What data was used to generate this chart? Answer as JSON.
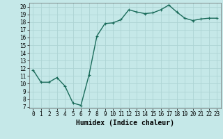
{
  "x": [
    0,
    1,
    2,
    3,
    4,
    5,
    6,
    7,
    8,
    9,
    10,
    11,
    12,
    13,
    14,
    15,
    16,
    17,
    18,
    19,
    20,
    21,
    22,
    23
  ],
  "y": [
    11.8,
    10.2,
    10.2,
    10.8,
    9.7,
    7.5,
    7.2,
    11.1,
    16.2,
    17.8,
    17.9,
    18.3,
    19.6,
    19.3,
    19.1,
    19.2,
    19.6,
    20.2,
    19.3,
    18.5,
    18.2,
    18.4,
    18.5,
    18.5
  ],
  "line_color": "#1a6b5a",
  "marker": "+",
  "marker_size": 3,
  "bg_color": "#c5e8e8",
  "grid_color": "#aed4d4",
  "xlabel": "Humidex (Indice chaleur)",
  "ylim": [
    6.8,
    20.5
  ],
  "xlim": [
    -0.5,
    23.5
  ],
  "yticks": [
    7,
    8,
    9,
    10,
    11,
    12,
    13,
    14,
    15,
    16,
    17,
    18,
    19,
    20
  ],
  "xticks": [
    0,
    1,
    2,
    3,
    4,
    5,
    6,
    7,
    8,
    9,
    10,
    11,
    12,
    13,
    14,
    15,
    16,
    17,
    18,
    19,
    20,
    21,
    22,
    23
  ],
  "tick_labelsize": 5.5,
  "xlabel_fontsize": 7,
  "linewidth": 1.0,
  "marker_linewidth": 0.8
}
